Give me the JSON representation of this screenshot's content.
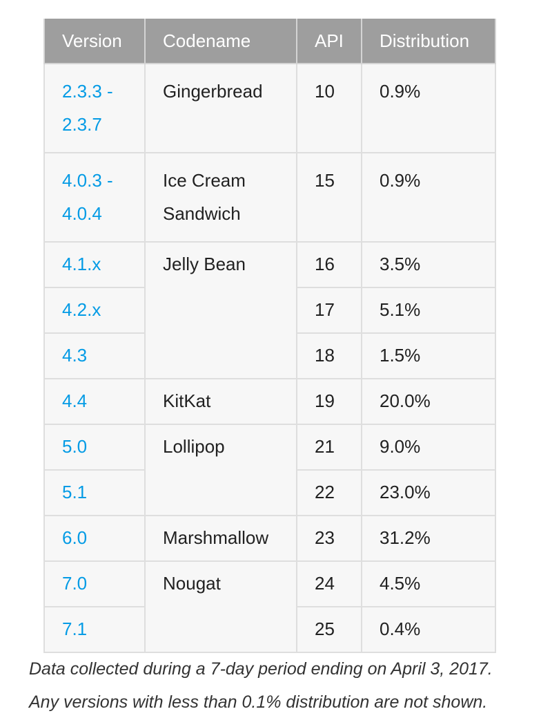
{
  "table": {
    "headers": {
      "version": "Version",
      "codename": "Codename",
      "api": "API",
      "distribution": "Distribution"
    },
    "rows": [
      {
        "version_line1": "2.3.3 -",
        "version_line2": "2.3.7",
        "codename": "Gingerbread",
        "api": "10",
        "distribution": "0.9%"
      },
      {
        "version_line1": "4.0.3 -",
        "version_line2": "4.0.4",
        "codename_line1": "Ice Cream",
        "codename_line2": "Sandwich",
        "api": "15",
        "distribution": "0.9%"
      },
      {
        "version": "4.1.x",
        "codename": "Jelly Bean",
        "api": "16",
        "distribution": "3.5%"
      },
      {
        "version": "4.2.x",
        "api": "17",
        "distribution": "5.1%"
      },
      {
        "version": "4.3",
        "api": "18",
        "distribution": "1.5%"
      },
      {
        "version": "4.4",
        "codename": "KitKat",
        "api": "19",
        "distribution": "20.0%"
      },
      {
        "version": "5.0",
        "codename": "Lollipop",
        "api": "21",
        "distribution": "9.0%"
      },
      {
        "version": "5.1",
        "api": "22",
        "distribution": "23.0%"
      },
      {
        "version": "6.0",
        "codename": "Marshmallow",
        "api": "23",
        "distribution": "31.2%"
      },
      {
        "version": "7.0",
        "codename": "Nougat",
        "api": "24",
        "distribution": "4.5%"
      },
      {
        "version": "7.1",
        "api": "25",
        "distribution": "0.4%"
      }
    ]
  },
  "footnote": {
    "line1": "Data collected during a 7-day period ending on April 3, 2017.",
    "line2": "Any versions with less than 0.1% distribution are not shown."
  },
  "colors": {
    "header_bg": "#9e9e9e",
    "cell_bg": "#f7f7f7",
    "link": "#039be5"
  }
}
